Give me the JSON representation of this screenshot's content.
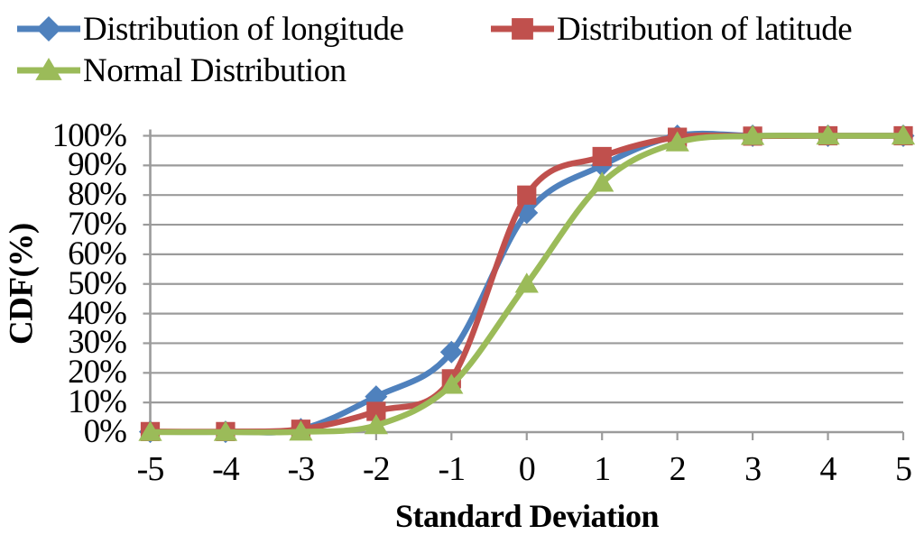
{
  "chart_data": {
    "type": "line",
    "title": "",
    "xlabel": "Standard Deviation",
    "ylabel": "CDF(%)",
    "xlim": [
      -5,
      5
    ],
    "ylim": [
      0,
      100
    ],
    "grid": "horizontal",
    "gridline_color": "#9b9b9b",
    "axis_color": "#9b9b9b",
    "legend_position": "top-left",
    "x": [
      -5,
      -4,
      -3,
      -2,
      -1,
      0,
      1,
      2,
      3,
      4,
      5
    ],
    "x_tick_labels": [
      "-5",
      "-4",
      "-3",
      "-2",
      "-1",
      "0",
      "1",
      "2",
      "3",
      "4",
      "5"
    ],
    "y_tick_labels": [
      "100%",
      "90%",
      "80%",
      "70%",
      "60%",
      "50%",
      "40%",
      "30%",
      "20%",
      "10%",
      "0%"
    ],
    "series": [
      {
        "name": "Distribution of longitude",
        "color": "#4F81BD",
        "marker": "diamond",
        "smooth": true,
        "values": [
          0.1,
          0.1,
          1,
          12,
          27,
          74,
          90,
          100,
          100,
          100,
          100
        ]
      },
      {
        "name": "Distribution of latitude",
        "color": "#C0504D",
        "marker": "square",
        "smooth": true,
        "values": [
          0.2,
          0.2,
          1,
          7,
          18,
          80,
          93,
          99.5,
          99.9,
          100,
          100
        ]
      },
      {
        "name": "Normal Distribution",
        "color": "#9BBB59",
        "marker": "triangle",
        "smooth": true,
        "values": [
          0,
          0,
          0.1,
          2.3,
          15.9,
          50,
          84.1,
          97.7,
          99.9,
          100,
          100
        ]
      }
    ]
  }
}
